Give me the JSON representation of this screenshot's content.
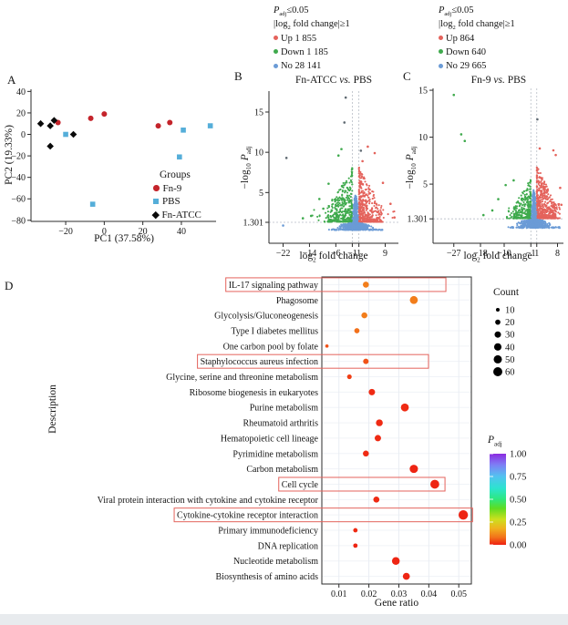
{
  "chart_data": [
    {
      "id": "pca",
      "type": "scatter",
      "panel_label": "A",
      "xlabel": "PC1 (37.58%)",
      "ylabel": "PC2 (19.33%)",
      "xlim": [
        -38,
        58
      ],
      "ylim": [
        -81,
        42
      ],
      "xticks": [
        -20,
        0,
        20,
        40
      ],
      "xtick_labels": [
        "−20",
        "0",
        "20",
        "40"
      ],
      "yticks": [
        40,
        20,
        0,
        -20,
        -40,
        -60,
        -80
      ],
      "ytick_labels": [
        "40",
        "20",
        "0",
        "−20",
        "−40",
        "−60",
        "−80"
      ],
      "legend_title": "Groups",
      "series": [
        {
          "name": "Fn-9",
          "marker": "circle",
          "color": "#c4242b",
          "points": [
            [
              -24,
              11
            ],
            [
              -7,
              15
            ],
            [
              0,
              19
            ],
            [
              28,
              8
            ],
            [
              34,
              11
            ]
          ]
        },
        {
          "name": "PBS",
          "marker": "square",
          "color": "#55aed9",
          "points": [
            [
              -20,
              0
            ],
            [
              41,
              4
            ],
            [
              55,
              8
            ],
            [
              39,
              -21
            ],
            [
              -6,
              -65
            ]
          ]
        },
        {
          "name": "Fn-ATCC",
          "marker": "diamond",
          "color": "#0a0a0a",
          "points": [
            [
              -33,
              10
            ],
            [
              -28,
              8
            ],
            [
              -26,
              13
            ],
            [
              -28,
              -11
            ],
            [
              -16,
              0
            ]
          ]
        }
      ]
    },
    {
      "id": "volcano-fnatcc",
      "type": "volcano-scatter",
      "panel_label": "B",
      "seed": 7,
      "header": {
        "p_italic": "P",
        "p_sub": "adj",
        "p_cond": "≤0.05",
        "fc_pre": "|log",
        "fc_sub": "2",
        "fc_post": " fold change|≥1",
        "up_label": "Up 1 855",
        "down_label": "Down 1 185",
        "no_label": "No 28 141"
      },
      "title": {
        "pre": "Fn-ATCC ",
        "vs": "vs.",
        "post": " PBS"
      },
      "xlabel": {
        "pre": "log",
        "sub": "2",
        "post": " fold change"
      },
      "ylabel": {
        "pre": "−log",
        "sub": "10",
        "p": "P",
        "psub": "adj"
      },
      "xlim": [
        -26.3,
        13
      ],
      "ylim": [
        -1.3,
        17.6
      ],
      "xticks": [
        -22,
        -14,
        -6,
        -1,
        1,
        9
      ],
      "xtick_labels": [
        "−22",
        "−14",
        "−6",
        "−1",
        "1",
        "9"
      ],
      "yticks": [
        1.301,
        5,
        10,
        15
      ],
      "ytick_labels": [
        "1.301",
        "5",
        "10",
        "15"
      ],
      "thresholds": {
        "x": [
          -1,
          1
        ],
        "y": 1.301
      },
      "colors": {
        "up": "#e4635c",
        "down": "#3faa4d",
        "no": "#6b9bd6",
        "gray": "#5f6a72"
      },
      "clouds": [
        {
          "kind": "side",
          "color": "down",
          "n": 380,
          "start": -1,
          "spread": 7.5,
          "xmax": 13.5,
          "ymin": 1.35,
          "ymax": 8.2,
          "ypow": 2.1
        },
        {
          "kind": "side",
          "color": "up",
          "n": 460,
          "start": 1,
          "spread": 7.0,
          "xmax": 12.0,
          "ymin": 1.35,
          "ymax": 8.2,
          "ypow": 2.1
        },
        {
          "kind": "column",
          "color": "no",
          "n": 520,
          "sd": 0.5,
          "ymin": 0.35,
          "ymax": 5.0,
          "ypow": 1.9
        },
        {
          "kind": "band",
          "color": "no",
          "n": 470,
          "sd": 3.0,
          "xmax": 8.0,
          "ymin": 0.35,
          "ymax": 1.3
        },
        {
          "kind": "row",
          "color": "no",
          "n": 55,
          "xmax": 8.3,
          "y": 0.38
        }
      ],
      "outliers": [
        [
          -3,
          16.8,
          "gray"
        ],
        [
          -3.4,
          13.7,
          "gray"
        ],
        [
          -4.3,
          10.4,
          "down"
        ],
        [
          1.6,
          10.2,
          "gray"
        ],
        [
          3.7,
          10.7,
          "up"
        ],
        [
          -21,
          9.3,
          "gray"
        ],
        [
          5.8,
          9.9,
          "up"
        ],
        [
          -5.2,
          9.6,
          "down"
        ],
        [
          2.1,
          8.9,
          "up"
        ],
        [
          8.3,
          6.2,
          "up"
        ],
        [
          -8.2,
          6.1,
          "down"
        ],
        [
          10.6,
          3.6,
          "up"
        ],
        [
          -11,
          4.2,
          "down"
        ],
        [
          -13.5,
          2.1,
          "down"
        ],
        [
          11.8,
          1.9,
          "up"
        ],
        [
          -16,
          1.8,
          "down"
        ],
        [
          -22,
          0.9,
          "no"
        ],
        [
          -9.8,
          3.0,
          "down"
        ]
      ]
    },
    {
      "id": "volcano-fn9",
      "type": "volcano-scatter",
      "panel_label": "C",
      "seed": 13,
      "header": {
        "p_italic": "P",
        "p_sub": "adj",
        "p_cond": "≤0.05",
        "fc_pre": "|log",
        "fc_sub": "2",
        "fc_post": " fold change|≥1",
        "up_label": "Up 864",
        "down_label": "Down 640",
        "no_label": "No 29 665"
      },
      "title": {
        "pre": "Fn-9 ",
        "vs": "vs.",
        "post": " PBS"
      },
      "xlabel": {
        "pre": "log",
        "sub": "2",
        "post": " fold change"
      },
      "ylabel": {
        "pre": "−log",
        "sub": "10",
        "p": "P",
        "psub": "adj"
      },
      "xlim": [
        -34,
        10
      ],
      "ylim": [
        -1.3,
        15.2
      ],
      "xticks": [
        -27,
        -18,
        -10,
        -1,
        1,
        8
      ],
      "xtick_labels": [
        "−27",
        "−18",
        "−10",
        "−1",
        "1",
        "8"
      ],
      "yticks": [
        1.301,
        5,
        10,
        15
      ],
      "ytick_labels": [
        "1.301",
        "5",
        "10",
        "15"
      ],
      "thresholds": {
        "x": [
          -1,
          1
        ],
        "y": 1.301
      },
      "colors": {
        "up": "#e4635c",
        "down": "#3faa4d",
        "no": "#6b9bd6",
        "gray": "#5f6a72"
      },
      "clouds": [
        {
          "kind": "side",
          "color": "down",
          "n": 300,
          "start": -1,
          "spread": 6.0,
          "xmax": 9.5,
          "ymin": 1.35,
          "ymax": 5.6,
          "ypow": 2.0
        },
        {
          "kind": "side",
          "color": "up",
          "n": 540,
          "start": 1,
          "spread": 6.5,
          "xmax": 8.8,
          "ymin": 1.35,
          "ymax": 7.0,
          "ypow": 2.0
        },
        {
          "kind": "column",
          "color": "no",
          "n": 520,
          "sd": 0.5,
          "ymin": 0.35,
          "ymax": 4.6,
          "ypow": 1.9
        },
        {
          "kind": "band",
          "color": "no",
          "n": 480,
          "sd": 3.2,
          "xmax": 8.6,
          "ymin": 0.35,
          "ymax": 1.3
        },
        {
          "kind": "row",
          "color": "no",
          "n": 60,
          "xmax": 8.8,
          "y": 0.38
        }
      ],
      "outliers": [
        [
          -27,
          14.5,
          "down"
        ],
        [
          -24.5,
          10.3,
          "down"
        ],
        [
          -23.3,
          9.6,
          "down"
        ],
        [
          6.6,
          8.6,
          "up"
        ],
        [
          7.4,
          8.1,
          "up"
        ],
        [
          2.0,
          8.8,
          "up"
        ],
        [
          -9.5,
          4.9,
          "down"
        ],
        [
          -12,
          3.4,
          "down"
        ],
        [
          -14,
          2.2,
          "down"
        ],
        [
          8.9,
          4.6,
          "up"
        ],
        [
          9.3,
          2.8,
          "up"
        ],
        [
          -17,
          1.7,
          "down"
        ],
        [
          1.2,
          11.9,
          "gray"
        ],
        [
          -6.8,
          5.4,
          "down"
        ]
      ]
    },
    {
      "id": "kegg-bubble",
      "type": "bubble",
      "panel_label": "D",
      "xlabel": "Gene ratio",
      "ylabel": "Description",
      "xlim": [
        0.0043,
        0.0542
      ],
      "xticks": [
        0.01,
        0.02,
        0.03,
        0.04,
        0.05
      ],
      "xtick_labels": [
        "0.01",
        "0.02",
        "0.03",
        "0.04",
        "0.05"
      ],
      "highlight_color": "#e4635c",
      "rows": [
        {
          "label": "IL-17 signaling pathway",
          "gene_ratio": 0.019,
          "count": 27,
          "p_adj": 0.1,
          "boxed": true,
          "box_end": 0.0457
        },
        {
          "label": "Phagosome",
          "gene_ratio": 0.035,
          "count": 46,
          "p_adj": 0.1,
          "boxed": false
        },
        {
          "label": "Glycolysis/Gluconeogenesis",
          "gene_ratio": 0.0185,
          "count": 26,
          "p_adj": 0.1,
          "boxed": false
        },
        {
          "label": "Type I diabetes mellitus",
          "gene_ratio": 0.016,
          "count": 20,
          "p_adj": 0.08,
          "boxed": false
        },
        {
          "label": "One carbon pool by folate",
          "gene_ratio": 0.006,
          "count": 8,
          "p_adj": 0.05,
          "boxed": false
        },
        {
          "label": "Staphylococcus aureus infection",
          "gene_ratio": 0.019,
          "count": 22,
          "p_adj": 0.05,
          "boxed": true,
          "box_end": 0.0399
        },
        {
          "label": "Glycine, serine and threonine metabolism",
          "gene_ratio": 0.0135,
          "count": 16,
          "p_adj": 0.03,
          "boxed": false
        },
        {
          "label": "Ribosome biogenesis in eukaryotes",
          "gene_ratio": 0.021,
          "count": 30,
          "p_adj": 0.01,
          "boxed": false
        },
        {
          "label": "Purine metabolism",
          "gene_ratio": 0.032,
          "count": 46,
          "p_adj": 0.01,
          "boxed": false
        },
        {
          "label": "Rheumatoid arthritis",
          "gene_ratio": 0.0235,
          "count": 34,
          "p_adj": 0.01,
          "boxed": false
        },
        {
          "label": "Hematopoietic cell lineage",
          "gene_ratio": 0.023,
          "count": 30,
          "p_adj": 0.01,
          "boxed": false
        },
        {
          "label": "Pyrimidine metabolism",
          "gene_ratio": 0.019,
          "count": 26,
          "p_adj": 0.01,
          "boxed": false
        },
        {
          "label": "Carbon metabolism",
          "gene_ratio": 0.035,
          "count": 50,
          "p_adj": 0.005,
          "boxed": false
        },
        {
          "label": "Cell cycle",
          "gene_ratio": 0.042,
          "count": 58,
          "p_adj": 0.005,
          "boxed": true,
          "box_end": 0.0454
        },
        {
          "label": "Viral protein interaction with cytokine and cytokine receptor",
          "gene_ratio": 0.0225,
          "count": 27,
          "p_adj": 0.01,
          "boxed": false
        },
        {
          "label": "Cytokine-cytokine receptor interaction",
          "gene_ratio": 0.0515,
          "count": 65,
          "p_adj": 0.005,
          "boxed": true,
          "box_end": 0.0546
        },
        {
          "label": "Primary immunodeficiency",
          "gene_ratio": 0.0155,
          "count": 14,
          "p_adj": 0.01,
          "boxed": false
        },
        {
          "label": "DNA replication",
          "gene_ratio": 0.0155,
          "count": 14,
          "p_adj": 0.005,
          "boxed": false
        },
        {
          "label": "Nucleotide metabolism",
          "gene_ratio": 0.029,
          "count": 44,
          "p_adj": 0.005,
          "boxed": false
        },
        {
          "label": "Biosynthesis of amino acids",
          "gene_ratio": 0.0325,
          "count": 36,
          "p_adj": 0.005,
          "boxed": false
        }
      ],
      "count_legend": {
        "title": "Count",
        "sizes": [
          10,
          20,
          30,
          40,
          50,
          60
        ]
      },
      "padj_legend": {
        "title_p": "P",
        "title_sub": "adj",
        "tick_values": [
          1.0,
          0.75,
          0.5,
          0.25,
          0.0
        ],
        "tick_labels": [
          "1.00",
          "0.75",
          "0.50",
          "0.25",
          "0.00"
        ]
      },
      "padj_scale": [
        {
          "t": 0.0,
          "c": "#ee2012"
        },
        {
          "t": 0.08,
          "c": "#f2701a"
        },
        {
          "t": 0.18,
          "c": "#f0b21e"
        },
        {
          "t": 0.28,
          "c": "#cce01e"
        },
        {
          "t": 0.4,
          "c": "#5edc22"
        },
        {
          "t": 0.5,
          "c": "#2ee87e"
        },
        {
          "t": 0.62,
          "c": "#2ce4cf"
        },
        {
          "t": 0.75,
          "c": "#52c3f0"
        },
        {
          "t": 0.88,
          "c": "#7e7ef5"
        },
        {
          "t": 1.0,
          "c": "#8c2be0"
        }
      ]
    }
  ]
}
